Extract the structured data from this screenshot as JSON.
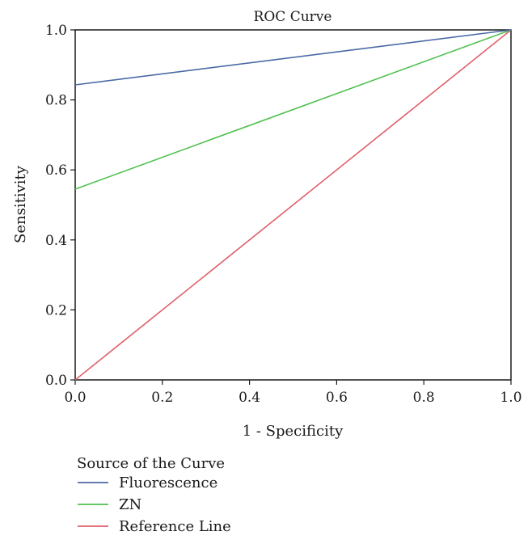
{
  "chart_data": {
    "type": "line",
    "title": "ROC Curve",
    "xlabel": "1 - Specificity",
    "ylabel": "Sensitivity",
    "xlim": [
      0,
      1
    ],
    "ylim": [
      0,
      1
    ],
    "xticks": [
      0.0,
      0.2,
      0.4,
      0.6,
      0.8,
      1.0
    ],
    "yticks": [
      0.0,
      0.2,
      0.4,
      0.6,
      0.8,
      1.0
    ],
    "xtick_labels": [
      "0.0",
      "0.2",
      "0.4",
      "0.6",
      "0.8",
      "1.0"
    ],
    "ytick_labels": [
      "0.0",
      "0.2",
      "0.4",
      "0.6",
      "0.8",
      "1.0"
    ],
    "grid": false,
    "legend": {
      "title": "Source of the Curve",
      "placement": "bottom-left"
    },
    "series": [
      {
        "name": "Fluorescence",
        "color": "#4a6aa5",
        "x": [
          0.0,
          1.0
        ],
        "y": [
          0.843,
          1.0
        ]
      },
      {
        "name": "ZN",
        "color": "#4ec04e",
        "x": [
          0.0,
          1.0
        ],
        "y": [
          0.545,
          1.0
        ]
      },
      {
        "name": "Reference Line",
        "color": "#e0606a",
        "x": [
          0.0,
          1.0
        ],
        "y": [
          0.0,
          1.0
        ]
      }
    ]
  }
}
